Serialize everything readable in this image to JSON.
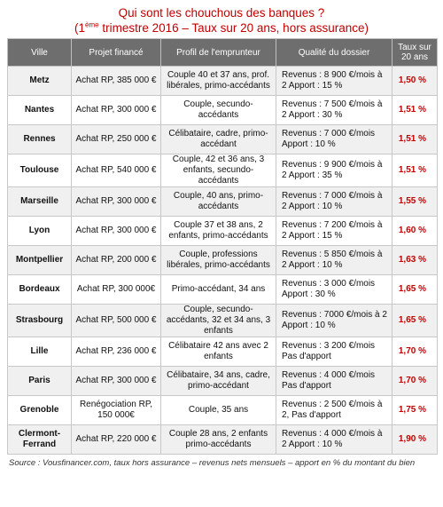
{
  "title": {
    "line1": "Qui sont les chouchous des banques ?",
    "line2_before": "(1",
    "line2_sup": "ème",
    "line2_after": " trimestre 2016 – Taux sur 20 ans, hors assurance)"
  },
  "headers": [
    "Ville",
    "Projet financé",
    "Profil de l'emprunteur",
    "Qualité du dossier",
    "Taux sur 20 ans"
  ],
  "rows": [
    {
      "ville": "Metz",
      "projet": "Achat RP, 385 000 €",
      "profil": "Couple 40 et 37 ans, prof. libérales, primo-accédants",
      "qualite": "Revenus : 8 900 €/mois à 2 Apport : 15 %",
      "taux": "1,50 %"
    },
    {
      "ville": "Nantes",
      "projet": "Achat RP, 300 000 €",
      "profil": "Couple, secundo-accédants",
      "qualite": "Revenus : 7 500 €/mois à 2 Apport : 30 %",
      "taux": "1,51 %"
    },
    {
      "ville": "Rennes",
      "projet": "Achat RP, 250 000 €",
      "profil": "Célibataire, cadre, primo-accédant",
      "qualite": "Revenus : 7 000 €/mois Apport : 10 %",
      "taux": "1,51 %"
    },
    {
      "ville": "Toulouse",
      "projet": "Achat RP,  540 000 €",
      "profil": "Couple, 42 et 36 ans, 3 enfants, secundo-accédants",
      "qualite": "Revenus : 9 900 €/mois à 2 Apport : 35 %",
      "taux": "1,51 %"
    },
    {
      "ville": "Marseille",
      "projet": "Achat RP, 300 000 €",
      "profil": "Couple, 40 ans, primo-accédants",
      "qualite": "Revenus : 7 000 €/mois à 2 Apport : 10 %",
      "taux": "1,55 %"
    },
    {
      "ville": "Lyon",
      "projet": "Achat RP, 300 000 €",
      "profil": "Couple 37 et 38 ans, 2 enfants,  primo-accédants",
      "qualite": "Revenus : 7 200 €/mois à 2 Apport : 15 %",
      "taux": "1,60 %"
    },
    {
      "ville": "Montpellier",
      "projet": "Achat RP, 200 000 €",
      "profil": "Couple, professions libérales, primo-accédants",
      "qualite": "Revenus : 5 850 €/mois à 2 Apport : 10 %",
      "taux": "1,63 %"
    },
    {
      "ville": "Bordeaux",
      "projet": "Achat RP, 300 000€",
      "profil": "Primo-accédant, 34 ans",
      "qualite": "Revenus : 3 000 €/mois Apport : 30 %",
      "taux": "1,65 %"
    },
    {
      "ville": "Strasbourg",
      "projet": "Achat RP, 500 000 €",
      "profil": "Couple, secundo-accédants, 32 et 34 ans, 3 enfants",
      "qualite": "Revenus : 7000 €/mois à 2 Apport : 10 %",
      "taux": "1,65 %"
    },
    {
      "ville": "Lille",
      "projet": "Achat RP, 236 000 €",
      "profil": "Célibataire 42 ans avec 2 enfants",
      "qualite": "Revenus : 3 200 €/mois Pas d'apport",
      "taux": "1,70 %"
    },
    {
      "ville": "Paris",
      "projet": "Achat RP, 300 000 €",
      "profil": "Célibataire, 34 ans, cadre, primo-accédant",
      "qualite": "Revenus : 4 000 €/mois Pas d'apport",
      "taux": "1,70 %"
    },
    {
      "ville": "Grenoble",
      "projet": "Renégociation RP, 150 000€",
      "profil": "Couple, 35 ans",
      "qualite": "Revenus : 2 500 €/mois à 2, Pas d'apport",
      "taux": "1,75 %"
    },
    {
      "ville": "Clermont-Ferrand",
      "projet": "Achat RP, 220 000 €",
      "profil": "Couple 28 ans, 2 enfants primo-accédants",
      "qualite": "Revenus : 4 000 €/mois à 2 Apport : 10 %",
      "taux": "1,90 %"
    }
  ],
  "source": "Source : Vousfinancer.com, taux hors assurance – revenus nets mensuels – apport en % du montant du bien",
  "colors": {
    "header_bg": "#6e6e6e",
    "accent_red": "#c00000",
    "row_alt": "#f0f0f0"
  }
}
